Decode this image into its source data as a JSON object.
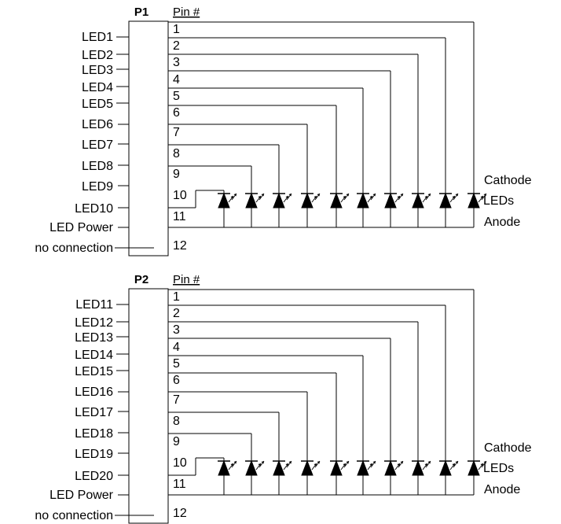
{
  "connectors": [
    {
      "title": "P1",
      "pin_header": "Pin #",
      "pins": [
        "1",
        "2",
        "3",
        "4",
        "5",
        "6",
        "7",
        "8",
        "9",
        "10",
        "11",
        "12"
      ],
      "signals": [
        "LED1",
        "LED2",
        "LED3",
        "LED4",
        "LED5",
        "LED6",
        "LED7",
        "LED8",
        "LED9",
        "LED10",
        "LED Power",
        "no connection"
      ],
      "led_group_labels": {
        "cathode": "Cathode",
        "leds": "LEDs",
        "anode": "Anode"
      }
    },
    {
      "title": "P2",
      "pin_header": "Pin #",
      "pins": [
        "1",
        "2",
        "3",
        "4",
        "5",
        "6",
        "7",
        "8",
        "9",
        "10",
        "11",
        "12"
      ],
      "signals": [
        "LED11",
        "LED12",
        "LED13",
        "LED14",
        "LED15",
        "LED16",
        "LED17",
        "LED18",
        "LED19",
        "LED20",
        "LED Power",
        "no connection"
      ],
      "led_group_labels": {
        "cathode": "Cathode",
        "leds": "LEDs",
        "anode": "Anode"
      }
    }
  ],
  "led_count_per_connector": 10
}
